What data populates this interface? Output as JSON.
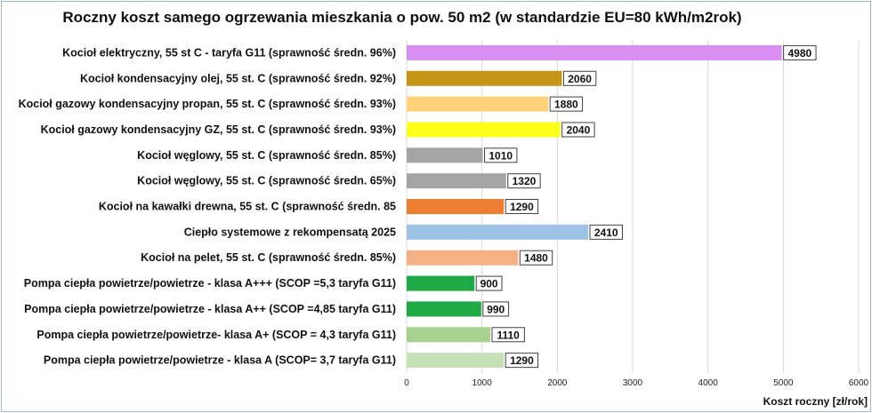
{
  "chart_data": {
    "type": "bar",
    "orientation": "horizontal",
    "title": "Roczny koszt samego ogrzewania mieszkania o pow. 50 m2 (w standardzie  EU=80 kWh/m2rok)",
    "xlabel": "Koszt roczny [zł/rok]",
    "ylabel": "",
    "xlim": [
      0,
      6000
    ],
    "xticks": [
      0,
      1000,
      2000,
      3000,
      4000,
      5000,
      6000
    ],
    "grid": true,
    "legend": "none",
    "categories": [
      "Kocioł  elektryczny, 55 st C -  taryfa G11 (sprawność średn. 96%)",
      "Kocioł  kondensacyjny olej, 55 st. C (sprawność średn. 92%)",
      "Kocioł gazowy kondensacyjny propan, 55 st. C (sprawność średn. 93%)",
      "Kocioł gazowy kondensacyjny GZ, 55 st. C (sprawność średn. 93%)",
      "Kocioł węglowy,  55 st. C (sprawność średn. 85%)",
      "Kocioł węglowy, 55 st. C (sprawność średn. 65%)",
      "Kocioł na kawałki drewna, 55 st. C (sprawność średn. 85",
      "Ciepło systemowe z rekompensatą 2025",
      "Kocioł na pelet, 55 st. C (sprawność średn. 85%)",
      "Pompa ciepła powietrze/powietrze -  klasa A+++ (SCOP =5,3 taryfa G11)",
      "Pompa ciepła powietrze/powietrze -  klasa A++ (SCOP =4,85 taryfa G11)",
      "Pompa ciepła powietrze/powietrze-  klasa A+ (SCOP = 4,3 taryfa G11)",
      "Pompa ciepła powietrze/powietrze - klasa A (SCOP= 3,7 taryfa G11)"
    ],
    "values": [
      4980,
      2060,
      1880,
      2040,
      1010,
      1320,
      1290,
      2410,
      1480,
      900,
      990,
      1110,
      1290
    ],
    "colors": [
      "#d98ff2",
      "#c49516",
      "#ffd27a",
      "#ffff1a",
      "#a5a5a5",
      "#a5a5a5",
      "#ed7d31",
      "#9dc3e6",
      "#f4b183",
      "#1faa45",
      "#1faa45",
      "#a9d18e",
      "#c5e0b4"
    ]
  }
}
